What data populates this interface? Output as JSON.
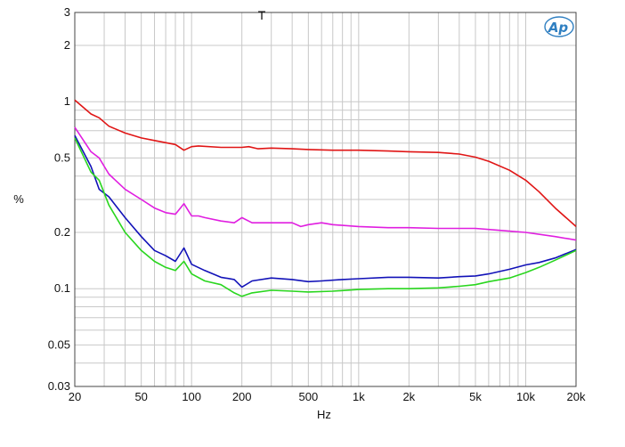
{
  "chart_data": {
    "type": "line",
    "title": "T",
    "xlabel": "Hz",
    "ylabel": "%",
    "xscale": "log",
    "yscale": "log",
    "xlim": [
      20,
      20000
    ],
    "ylim": [
      0.03,
      3
    ],
    "grid": true,
    "logo": "Ap",
    "x_ticks": [
      {
        "v": 20,
        "label": "20"
      },
      {
        "v": 50,
        "label": "50"
      },
      {
        "v": 100,
        "label": "100"
      },
      {
        "v": 200,
        "label": "200"
      },
      {
        "v": 500,
        "label": "500"
      },
      {
        "v": 1000,
        "label": "1k"
      },
      {
        "v": 2000,
        "label": "2k"
      },
      {
        "v": 5000,
        "label": "5k"
      },
      {
        "v": 10000,
        "label": "10k"
      },
      {
        "v": 20000,
        "label": "20k"
      }
    ],
    "y_ticks": [
      {
        "v": 0.03,
        "label": "0.03"
      },
      {
        "v": 0.05,
        "label": "0.05"
      },
      {
        "v": 0.1,
        "label": "0.1"
      },
      {
        "v": 0.2,
        "label": "0.2"
      },
      {
        "v": 0.5,
        "label": "0.5"
      },
      {
        "v": 1,
        "label": "1"
      },
      {
        "v": 2,
        "label": "2"
      },
      {
        "v": 3,
        "label": "3"
      }
    ],
    "series": [
      {
        "color": "#e01515",
        "points": [
          [
            20,
            1.02
          ],
          [
            25,
            0.86
          ],
          [
            28,
            0.82
          ],
          [
            32,
            0.74
          ],
          [
            40,
            0.68
          ],
          [
            50,
            0.64
          ],
          [
            60,
            0.62
          ],
          [
            80,
            0.59
          ],
          [
            90,
            0.55
          ],
          [
            100,
            0.575
          ],
          [
            110,
            0.58
          ],
          [
            150,
            0.57
          ],
          [
            200,
            0.57
          ],
          [
            220,
            0.575
          ],
          [
            250,
            0.56
          ],
          [
            300,
            0.565
          ],
          [
            400,
            0.56
          ],
          [
            500,
            0.555
          ],
          [
            700,
            0.55
          ],
          [
            1000,
            0.55
          ],
          [
            1500,
            0.545
          ],
          [
            2000,
            0.54
          ],
          [
            3000,
            0.535
          ],
          [
            4000,
            0.525
          ],
          [
            5000,
            0.505
          ],
          [
            6000,
            0.48
          ],
          [
            8000,
            0.43
          ],
          [
            10000,
            0.38
          ],
          [
            12000,
            0.33
          ],
          [
            15000,
            0.27
          ],
          [
            20000,
            0.215
          ]
        ]
      },
      {
        "color": "#e01ee0",
        "points": [
          [
            20,
            0.73
          ],
          [
            25,
            0.54
          ],
          [
            28,
            0.5
          ],
          [
            32,
            0.41
          ],
          [
            40,
            0.34
          ],
          [
            50,
            0.3
          ],
          [
            60,
            0.27
          ],
          [
            70,
            0.255
          ],
          [
            80,
            0.25
          ],
          [
            90,
            0.285
          ],
          [
            100,
            0.245
          ],
          [
            110,
            0.245
          ],
          [
            120,
            0.24
          ],
          [
            150,
            0.23
          ],
          [
            180,
            0.225
          ],
          [
            200,
            0.24
          ],
          [
            230,
            0.225
          ],
          [
            300,
            0.225
          ],
          [
            400,
            0.225
          ],
          [
            450,
            0.215
          ],
          [
            500,
            0.22
          ],
          [
            600,
            0.225
          ],
          [
            700,
            0.22
          ],
          [
            1000,
            0.215
          ],
          [
            1500,
            0.212
          ],
          [
            2000,
            0.212
          ],
          [
            3000,
            0.21
          ],
          [
            5000,
            0.21
          ],
          [
            7000,
            0.205
          ],
          [
            10000,
            0.2
          ],
          [
            15000,
            0.19
          ],
          [
            20000,
            0.182
          ]
        ]
      },
      {
        "color": "#1212b8",
        "points": [
          [
            20,
            0.66
          ],
          [
            25,
            0.45
          ],
          [
            28,
            0.34
          ],
          [
            32,
            0.31
          ],
          [
            40,
            0.24
          ],
          [
            50,
            0.19
          ],
          [
            60,
            0.16
          ],
          [
            70,
            0.15
          ],
          [
            80,
            0.14
          ],
          [
            90,
            0.165
          ],
          [
            100,
            0.135
          ],
          [
            120,
            0.125
          ],
          [
            150,
            0.115
          ],
          [
            180,
            0.112
          ],
          [
            200,
            0.102
          ],
          [
            230,
            0.11
          ],
          [
            300,
            0.114
          ],
          [
            400,
            0.112
          ],
          [
            500,
            0.109
          ],
          [
            600,
            0.11
          ],
          [
            800,
            0.112
          ],
          [
            1000,
            0.113
          ],
          [
            1500,
            0.115
          ],
          [
            2000,
            0.115
          ],
          [
            3000,
            0.114
          ],
          [
            4000,
            0.116
          ],
          [
            5000,
            0.117
          ],
          [
            6000,
            0.12
          ],
          [
            8000,
            0.127
          ],
          [
            10000,
            0.134
          ],
          [
            12000,
            0.138
          ],
          [
            15000,
            0.146
          ],
          [
            20000,
            0.162
          ]
        ]
      },
      {
        "color": "#29d61e",
        "points": [
          [
            20,
            0.64
          ],
          [
            25,
            0.42
          ],
          [
            28,
            0.38
          ],
          [
            32,
            0.28
          ],
          [
            40,
            0.2
          ],
          [
            50,
            0.16
          ],
          [
            60,
            0.14
          ],
          [
            70,
            0.13
          ],
          [
            80,
            0.125
          ],
          [
            90,
            0.14
          ],
          [
            100,
            0.12
          ],
          [
            120,
            0.11
          ],
          [
            150,
            0.105
          ],
          [
            180,
            0.095
          ],
          [
            200,
            0.091
          ],
          [
            230,
            0.095
          ],
          [
            300,
            0.098
          ],
          [
            400,
            0.097
          ],
          [
            500,
            0.096
          ],
          [
            700,
            0.097
          ],
          [
            1000,
            0.099
          ],
          [
            1500,
            0.1
          ],
          [
            2000,
            0.1
          ],
          [
            3000,
            0.101
          ],
          [
            4000,
            0.103
          ],
          [
            5000,
            0.105
          ],
          [
            6000,
            0.109
          ],
          [
            8000,
            0.114
          ],
          [
            10000,
            0.122
          ],
          [
            12000,
            0.13
          ],
          [
            15000,
            0.142
          ],
          [
            20000,
            0.16
          ]
        ]
      }
    ]
  }
}
